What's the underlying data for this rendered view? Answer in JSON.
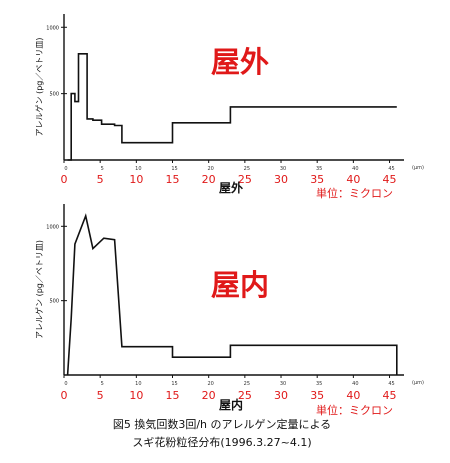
{
  "chart_data": [
    {
      "type": "line",
      "title": "屋外",
      "xlabel": "屋外",
      "ylabel": "アレルゲン (pg／ペトリ皿)",
      "unit_note": "単位：ミクロン",
      "xlim": [
        0,
        47
      ],
      "ylim": [
        0,
        1100
      ],
      "x_ticks_red": [
        "0",
        "5",
        "10",
        "15",
        "20",
        "25",
        "30",
        "35",
        "40",
        "45"
      ],
      "x_axis_end_label": "(μm)",
      "y_ticks": [
        "1000",
        "500"
      ],
      "series": [
        {
          "x": [
            0.5,
            1,
            1,
            1.5,
            1.5,
            2,
            2,
            3.2,
            3.2,
            4,
            4,
            5.2,
            5.2,
            7,
            7,
            8,
            8,
            15,
            15,
            23,
            23,
            46
          ],
          "y": [
            0,
            0,
            500,
            500,
            440,
            440,
            800,
            800,
            310,
            310,
            300,
            300,
            270,
            270,
            260,
            260,
            130,
            130,
            280,
            280,
            400,
            400
          ]
        }
      ]
    },
    {
      "type": "line",
      "title": "屋内",
      "xlabel": "屋内",
      "ylabel": "アレルゲン (pg／ペトリ皿)",
      "unit_note": "単位：ミクロン",
      "xlim": [
        0,
        47
      ],
      "ylim": [
        0,
        1150
      ],
      "x_ticks_red": [
        "0",
        "5",
        "10",
        "15",
        "20",
        "25",
        "30",
        "35",
        "40",
        "45"
      ],
      "x_axis_end_label": "(μm)",
      "y_ticks": [
        "1000",
        "500"
      ],
      "series": [
        {
          "x": [
            0.5,
            1,
            1,
            1.5,
            1.5,
            3,
            3,
            4,
            4,
            5.5,
            5.5,
            7,
            7,
            8,
            8,
            15,
            15,
            23,
            23,
            46,
            46
          ],
          "y": [
            0,
            380,
            380,
            880,
            880,
            1070,
            1070,
            850,
            850,
            920,
            920,
            910,
            910,
            190,
            190,
            190,
            120,
            120,
            200,
            200,
            0
          ]
        }
      ]
    }
  ],
  "caption": {
    "line1": "図5 換気回数3回/h のアレルゲン定量による",
    "line2": "スギ花粉粒径分布(1996.3.27~4.1)"
  }
}
